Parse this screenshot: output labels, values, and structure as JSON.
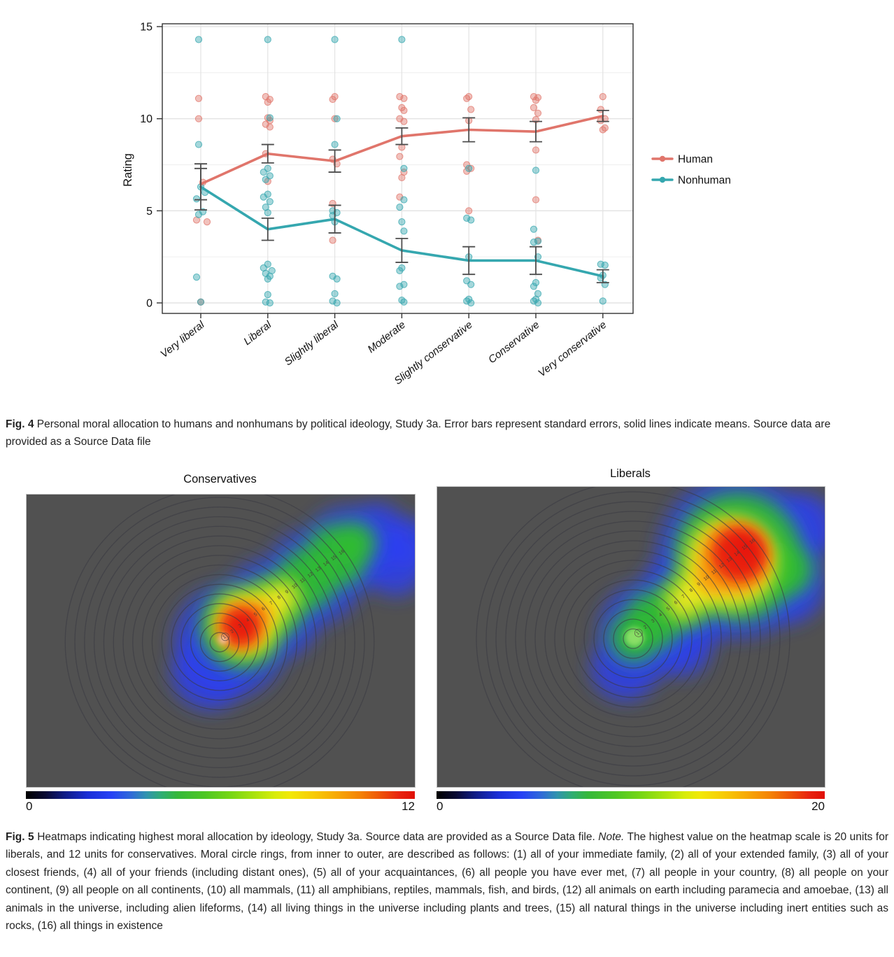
{
  "figure4": {
    "caption": [
      {
        "t": "Fig. 4",
        "b": 1
      },
      {
        "t": " Personal moral allocation to humans and nonhumans by political ideology, Study 3a. Error bars represent standard errors, solid lines indicate means. Source data are provided as a Source Data file"
      }
    ]
  },
  "figure5": {
    "caption": [
      {
        "t": "Fig. 5",
        "b": 1
      },
      {
        "t": " Heatmaps indicating highest moral allocation by ideology, Study 3a. Source data are provided as a Source Data file. "
      },
      {
        "t": "Note.",
        "i": 1
      },
      {
        "t": " The highest value on the heatmap scale is 20 units for liberals, and 12 units for conservatives. Moral circle rings, from inner to outer, are described as follows: (1) all of your immediate family, (2) all of your extended family, (3) all of your closest friends, (4) all of your friends (including distant ones), (5) all of your acquaintances, (6) all people you have ever met, (7) all people in your country, (8) all people on your continent, (9) all people on all continents, (10) all mammals, (11) all amphibians, reptiles, mammals, fish, and birds, (12) all animals on earth including paramecia and amoebae, (13) all animals in the universe, including alien lifeforms, (14) all living things in the universe including plants and trees, (15) all natural things in the universe including inert entities such as rocks, (16) all things in existence"
      }
    ]
  },
  "chart_data": [
    {
      "type": "line",
      "title": "",
      "xlabel": "",
      "ylabel": "Rating",
      "ylim": [
        0,
        15
      ],
      "yticks": [
        0,
        5,
        10,
        15
      ],
      "minor_gridlines": [
        2.5,
        7.5,
        12.5
      ],
      "grid": true,
      "legend_position": "right",
      "categories": [
        "Very liberal",
        "Liberal",
        "Slightly liberal",
        "Moderate",
        "Slightly conservative",
        "Conservative",
        "Very conservative"
      ],
      "series": [
        {
          "name": "Human",
          "color": "#e0756b",
          "means": [
            6.45,
            8.1,
            7.7,
            9.05,
            9.4,
            9.3,
            10.15
          ],
          "se": [
            0.85,
            0.5,
            0.6,
            0.45,
            0.65,
            0.55,
            0.3
          ]
        },
        {
          "name": "Nonhuman",
          "color": "#35a7af",
          "means": [
            6.3,
            4.0,
            4.55,
            2.85,
            2.3,
            2.3,
            1.45
          ],
          "se": [
            1.25,
            0.6,
            0.75,
            0.65,
            0.75,
            0.75,
            0.35
          ]
        }
      ],
      "scatter_human": [
        [
          [
            11.1,
            -1
          ],
          [
            10.0,
            -1
          ],
          [
            6.55,
            1
          ],
          [
            4.5,
            -2
          ],
          [
            4.4,
            3
          ],
          [
            0.05,
            0
          ]
        ],
        [
          [
            11.2,
            -1
          ],
          [
            11.05,
            1
          ],
          [
            10.9,
            0
          ],
          [
            10.05,
            0
          ],
          [
            9.9,
            1
          ],
          [
            9.7,
            -1
          ],
          [
            9.55,
            1
          ],
          [
            8.1,
            -1
          ],
          [
            6.6,
            0
          ]
        ],
        [
          [
            11.2,
            0
          ],
          [
            11.05,
            -1
          ],
          [
            10.0,
            0
          ],
          [
            7.8,
            -1
          ],
          [
            7.55,
            1
          ],
          [
            5.4,
            -1
          ],
          [
            3.4,
            -1
          ]
        ],
        [
          [
            11.2,
            -1
          ],
          [
            11.1,
            1
          ],
          [
            10.6,
            0
          ],
          [
            10.45,
            1
          ],
          [
            10.0,
            -1
          ],
          [
            9.85,
            1
          ],
          [
            8.45,
            0
          ],
          [
            7.95,
            -1
          ],
          [
            7.1,
            1
          ],
          [
            6.8,
            0
          ],
          [
            5.75,
            -1
          ]
        ],
        [
          [
            11.2,
            0
          ],
          [
            11.1,
            -1
          ],
          [
            10.5,
            1
          ],
          [
            9.9,
            0
          ],
          [
            7.5,
            -1
          ],
          [
            7.3,
            1
          ],
          [
            7.15,
            -1
          ],
          [
            5.0,
            0
          ]
        ],
        [
          [
            11.2,
            -1
          ],
          [
            11.15,
            1
          ],
          [
            11.0,
            0
          ],
          [
            10.6,
            -1
          ],
          [
            10.3,
            1
          ],
          [
            9.95,
            0
          ],
          [
            8.3,
            0
          ],
          [
            5.6,
            0
          ],
          [
            3.4,
            1
          ]
        ],
        [
          [
            11.2,
            0
          ],
          [
            10.5,
            -1
          ],
          [
            10.0,
            1
          ],
          [
            9.9,
            -1
          ],
          [
            9.5,
            1
          ],
          [
            9.4,
            0
          ]
        ]
      ],
      "scatter_nonhuman": [
        [
          [
            14.3,
            -1
          ],
          [
            8.6,
            -1
          ],
          [
            6.3,
            0
          ],
          [
            6.0,
            2
          ],
          [
            5.65,
            -2
          ],
          [
            4.95,
            1
          ],
          [
            4.8,
            -1
          ],
          [
            1.4,
            -2
          ],
          [
            0.05,
            0
          ]
        ],
        [
          [
            14.3,
            0
          ],
          [
            10.05,
            1
          ],
          [
            7.3,
            0
          ],
          [
            7.1,
            -2
          ],
          [
            6.9,
            1
          ],
          [
            6.7,
            -1
          ],
          [
            5.9,
            0
          ],
          [
            5.75,
            -2
          ],
          [
            5.5,
            1
          ],
          [
            5.2,
            -1
          ],
          [
            4.9,
            0
          ],
          [
            2.1,
            0
          ],
          [
            1.9,
            -2
          ],
          [
            1.75,
            2
          ],
          [
            1.6,
            -1
          ],
          [
            1.45,
            1
          ],
          [
            1.3,
            0
          ],
          [
            0.45,
            0
          ],
          [
            0.05,
            -1
          ],
          [
            0.0,
            1
          ]
        ],
        [
          [
            14.3,
            0
          ],
          [
            10.0,
            1
          ],
          [
            8.6,
            0
          ],
          [
            5.0,
            -1
          ],
          [
            4.9,
            1
          ],
          [
            4.75,
            -1
          ],
          [
            4.4,
            0
          ],
          [
            1.45,
            -1
          ],
          [
            1.3,
            1
          ],
          [
            0.5,
            0
          ],
          [
            0.1,
            -1
          ],
          [
            0.0,
            1
          ]
        ],
        [
          [
            14.3,
            0
          ],
          [
            7.3,
            1
          ],
          [
            5.6,
            1
          ],
          [
            5.2,
            -1
          ],
          [
            4.4,
            0
          ],
          [
            3.9,
            1
          ],
          [
            1.9,
            0
          ],
          [
            1.75,
            -1
          ],
          [
            1.0,
            1
          ],
          [
            0.9,
            -1
          ],
          [
            0.15,
            0
          ],
          [
            0.05,
            1
          ]
        ],
        [
          [
            7.3,
            0
          ],
          [
            4.6,
            -1
          ],
          [
            4.5,
            1
          ],
          [
            2.5,
            0
          ],
          [
            1.2,
            -1
          ],
          [
            1.0,
            1
          ],
          [
            0.2,
            0
          ],
          [
            0.1,
            -1
          ],
          [
            0.0,
            1
          ]
        ],
        [
          [
            7.2,
            0
          ],
          [
            4.0,
            -1
          ],
          [
            3.35,
            1
          ],
          [
            3.3,
            -1
          ],
          [
            2.5,
            1
          ],
          [
            1.1,
            0
          ],
          [
            0.9,
            -1
          ],
          [
            0.5,
            1
          ],
          [
            0.2,
            0
          ],
          [
            0.1,
            -1
          ],
          [
            0.0,
            1
          ]
        ],
        [
          [
            2.1,
            -1
          ],
          [
            2.05,
            1
          ],
          [
            1.5,
            0
          ],
          [
            1.35,
            -1
          ],
          [
            1.0,
            1
          ],
          [
            0.1,
            0
          ]
        ]
      ]
    },
    {
      "type": "heatmap",
      "title": "Conservatives",
      "colorbar_min": "0",
      "colorbar_max": "12",
      "rings": 16,
      "ring_labels": [
        "1",
        "2",
        "3",
        "4",
        "5",
        "6",
        "7",
        "8",
        "9",
        "10",
        "11",
        "12",
        "13",
        "14",
        "15",
        "16"
      ],
      "summary": "Hottest region (~12 units, red) centered on rings 1-5 near the moral-circle center; warmth fades through yellow and green along the diagonal toward ring 16, with a blue fringe at the outer upper-right."
    },
    {
      "type": "heatmap",
      "title": "Liberals",
      "colorbar_min": "0",
      "colorbar_max": "20",
      "rings": 16,
      "ring_labels": [
        "1",
        "2",
        "3",
        "4",
        "5",
        "6",
        "7",
        "8",
        "9",
        "10",
        "11",
        "12",
        "13",
        "14",
        "15",
        "16"
      ],
      "summary": "Hottest region (~20 units, red) centered on outer rings 12-16 in the upper-right; the moral-circle center shows moderate (green) allocation, with a blue fringe surrounding the diagonal band."
    }
  ]
}
